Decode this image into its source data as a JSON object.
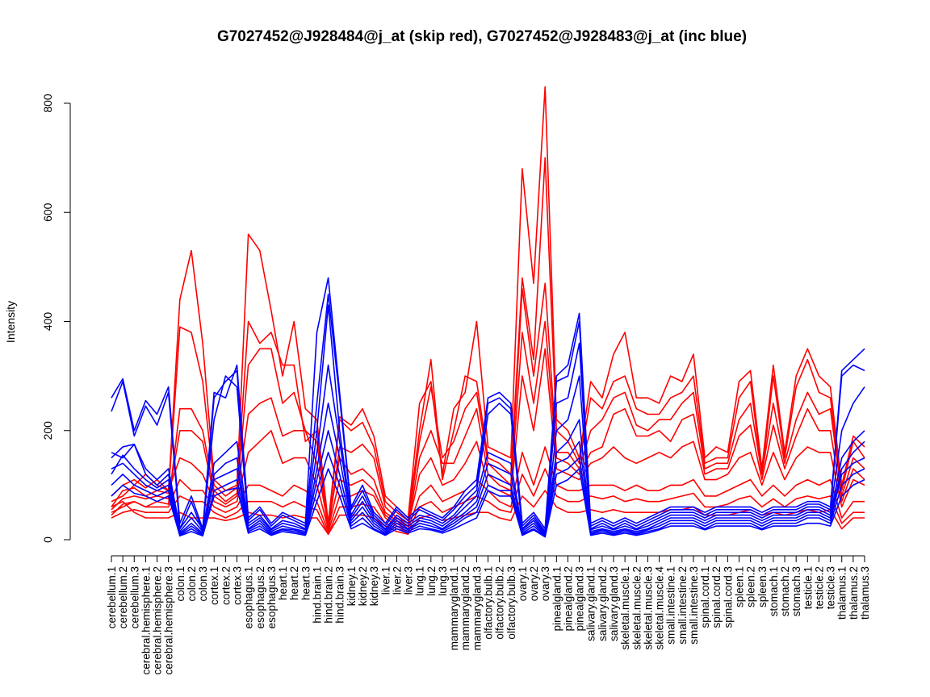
{
  "chart_data": {
    "type": "line",
    "title": "G7027452@J928484@j_at (skip red), G7027452@J928483@j_at (inc blue)",
    "xlabel": "",
    "ylabel": "Intensity",
    "ylim": [
      0,
      830
    ],
    "yticks": [
      0,
      200,
      400,
      600,
      800
    ],
    "colors": {
      "skip": "#ff0000",
      "inc": "#0000ff"
    },
    "categories": [
      "cerebellum.1",
      "cerebellum.2",
      "cerebellum.3",
      "cerebral.hemisphere.1",
      "cerebral.hemisphere.2",
      "cerebral.hemisphere.3",
      "colon.1",
      "colon.2",
      "colon.3",
      "cortex.1",
      "cortex.2",
      "cortex.3",
      "esophagus.1",
      "esophagus.2",
      "esophagus.3",
      "heart.1",
      "heart.2",
      "heart.3",
      "hind.brain.1",
      "hind.brain.2",
      "hind.brain.3",
      "kidney.1",
      "kidney.2",
      "kidney.3",
      "liver.1",
      "liver.2",
      "liver.3",
      "lung.1",
      "lung.2",
      "lung.3",
      "mammarygland.1",
      "mammarygland.2",
      "mammarygland.3",
      "olfactory.bulb.1",
      "olfactory.bulb.2",
      "olfactory.bulb.3",
      "ovary.1",
      "ovary.2",
      "ovary.3",
      "pinealgland.1",
      "pinealgland.2",
      "pinealgland.3",
      "salivary.gland.1",
      "salivary.gland.2",
      "salivary.gland.3",
      "skeletal.muscle.1",
      "skeletal.muscle.2",
      "skeletal.muscle.3",
      "skeletal.muscle.4",
      "small.intestine.1",
      "small.intestine.2",
      "small.intestine.3",
      "spinal.cord.1",
      "spinal.cord.2",
      "spinal.cord.3",
      "spleen.1",
      "spleen.2",
      "spleen.3",
      "stomach.1",
      "stomach.2",
      "stomach.3",
      "testicle.1",
      "testicle.2",
      "testicle.3",
      "thalamus.1",
      "thalamus.2",
      "thalamus.3"
    ],
    "series": [
      {
        "group": "skip",
        "values": [
          80,
          100,
          110,
          95,
          110,
          90,
          440,
          530,
          360,
          110,
          90,
          100,
          560,
          530,
          420,
          300,
          400,
          240,
          220,
          30,
          225,
          210,
          240,
          190,
          80,
          60,
          40,
          250,
          290,
          120,
          240,
          270,
          400,
          170,
          160,
          150,
          680,
          470,
          830,
          220,
          200,
          150,
          290,
          260,
          340,
          380,
          260,
          260,
          250,
          300,
          290,
          340,
          150,
          170,
          160,
          290,
          310,
          130,
          320,
          160,
          300,
          350,
          300,
          280,
          100,
          190,
          170
        ]
      },
      {
        "group": "skip",
        "values": [
          60,
          90,
          95,
          80,
          90,
          85,
          390,
          380,
          290,
          100,
          80,
          95,
          400,
          360,
          380,
          320,
          320,
          180,
          200,
          20,
          220,
          200,
          215,
          170,
          70,
          50,
          35,
          200,
          330,
          110,
          200,
          300,
          290,
          150,
          140,
          120,
          480,
          330,
          700,
          200,
          180,
          140,
          260,
          240,
          290,
          300,
          240,
          230,
          230,
          260,
          270,
          300,
          140,
          150,
          150,
          260,
          290,
          120,
          300,
          150,
          280,
          330,
          270,
          260,
          90,
          180,
          150
        ]
      },
      {
        "group": "skip",
        "values": [
          45,
          65,
          70,
          60,
          70,
          65,
          240,
          240,
          200,
          90,
          70,
          85,
          320,
          350,
          350,
          250,
          270,
          200,
          180,
          15,
          170,
          160,
          175,
          150,
          60,
          40,
          30,
          180,
          280,
          150,
          180,
          240,
          270,
          140,
          120,
          100,
          460,
          300,
          470,
          160,
          160,
          130,
          200,
          220,
          260,
          270,
          210,
          200,
          220,
          220,
          250,
          270,
          130,
          140,
          140,
          220,
          250,
          120,
          250,
          140,
          220,
          270,
          230,
          240,
          80,
          150,
          130
        ]
      },
      {
        "group": "skip",
        "values": [
          55,
          75,
          80,
          75,
          80,
          75,
          200,
          200,
          180,
          80,
          65,
          80,
          230,
          250,
          260,
          190,
          200,
          200,
          140,
          25,
          150,
          120,
          130,
          110,
          50,
          35,
          25,
          150,
          200,
          140,
          140,
          190,
          240,
          120,
          100,
          90,
          380,
          250,
          400,
          150,
          140,
          120,
          160,
          170,
          230,
          240,
          190,
          190,
          200,
          180,
          220,
          230,
          120,
          130,
          130,
          190,
          210,
          110,
          210,
          130,
          190,
          240,
          200,
          200,
          70,
          130,
          110
        ]
      },
      {
        "group": "skip",
        "values": [
          70,
          80,
          100,
          120,
          100,
          90,
          150,
          140,
          120,
          70,
          60,
          70,
          160,
          180,
          200,
          140,
          150,
          150,
          100,
          20,
          110,
          100,
          110,
          90,
          45,
          30,
          25,
          120,
          150,
          100,
          110,
          140,
          180,
          100,
          90,
          80,
          300,
          200,
          350,
          130,
          120,
          110,
          140,
          150,
          170,
          150,
          140,
          150,
          160,
          150,
          170,
          180,
          110,
          110,
          120,
          150,
          160,
          100,
          160,
          110,
          150,
          170,
          160,
          160,
          60,
          110,
          100
        ]
      },
      {
        "group": "skip",
        "values": [
          50,
          60,
          70,
          60,
          60,
          60,
          110,
          90,
          90,
          60,
          50,
          60,
          100,
          100,
          90,
          80,
          100,
          90,
          70,
          15,
          80,
          80,
          90,
          80,
          40,
          25,
          20,
          80,
          100,
          70,
          80,
          90,
          110,
          90,
          70,
          60,
          160,
          100,
          170,
          100,
          90,
          90,
          100,
          100,
          100,
          90,
          100,
          90,
          90,
          100,
          100,
          110,
          80,
          80,
          90,
          100,
          110,
          80,
          100,
          80,
          100,
          110,
          100,
          110,
          40,
          70,
          70
        ]
      },
      {
        "group": "skip",
        "values": [
          40,
          50,
          55,
          50,
          50,
          50,
          80,
          70,
          70,
          50,
          40,
          50,
          70,
          70,
          70,
          60,
          70,
          60,
          55,
          10,
          60,
          60,
          65,
          60,
          30,
          20,
          15,
          60,
          70,
          50,
          60,
          70,
          80,
          70,
          55,
          50,
          120,
          80,
          130,
          80,
          70,
          70,
          80,
          75,
          80,
          70,
          75,
          70,
          70,
          75,
          80,
          85,
          60,
          60,
          65,
          75,
          80,
          60,
          75,
          60,
          75,
          80,
          75,
          80,
          30,
          50,
          50
        ]
      },
      {
        "group": "skip",
        "values": [
          60,
          70,
          50,
          40,
          40,
          40,
          50,
          40,
          40,
          40,
          35,
          40,
          50,
          45,
          45,
          40,
          45,
          40,
          40,
          10,
          45,
          45,
          45,
          40,
          25,
          15,
          10,
          40,
          45,
          35,
          40,
          45,
          50,
          50,
          40,
          35,
          80,
          60,
          90,
          60,
          50,
          50,
          55,
          50,
          55,
          50,
          50,
          50,
          50,
          55,
          55,
          60,
          45,
          45,
          45,
          50,
          55,
          45,
          50,
          45,
          50,
          55,
          50,
          55,
          20,
          40,
          40
        ]
      },
      {
        "group": "inc",
        "values": [
          260,
          295,
          200,
          255,
          230,
          280,
          30,
          80,
          20,
          270,
          260,
          320,
          40,
          60,
          30,
          50,
          40,
          30,
          380,
          480,
          270,
          60,
          100,
          50,
          30,
          60,
          40,
          60,
          50,
          40,
          60,
          90,
          110,
          260,
          270,
          250,
          30,
          50,
          20,
          300,
          320,
          415,
          30,
          40,
          30,
          40,
          30,
          40,
          50,
          60,
          60,
          60,
          50,
          60,
          60,
          60,
          60,
          50,
          60,
          60,
          60,
          70,
          70,
          60,
          310,
          330,
          350
        ]
      },
      {
        "group": "inc",
        "values": [
          235,
          290,
          190,
          245,
          210,
          270,
          20,
          70,
          15,
          260,
          290,
          310,
          35,
          55,
          25,
          45,
          35,
          25,
          250,
          450,
          260,
          55,
          90,
          45,
          25,
          55,
          35,
          55,
          45,
          35,
          55,
          80,
          100,
          250,
          260,
          240,
          25,
          45,
          15,
          290,
          300,
          400,
          25,
          35,
          25,
          35,
          25,
          35,
          45,
          55,
          55,
          55,
          45,
          55,
          55,
          55,
          55,
          45,
          55,
          55,
          55,
          65,
          65,
          55,
          300,
          320,
          310
        ]
      },
      {
        "group": "inc",
        "values": [
          150,
          170,
          175,
          130,
          110,
          130,
          20,
          50,
          20,
          220,
          300,
          280,
          30,
          45,
          20,
          35,
          30,
          20,
          200,
          430,
          200,
          45,
          80,
          40,
          20,
          45,
          30,
          45,
          40,
          30,
          45,
          70,
          90,
          230,
          250,
          230,
          20,
          40,
          12,
          250,
          260,
          360,
          20,
          30,
          20,
          30,
          20,
          30,
          40,
          50,
          50,
          50,
          40,
          50,
          50,
          50,
          50,
          40,
          50,
          50,
          50,
          60,
          60,
          50,
          200,
          250,
          280
        ]
      },
      {
        "group": "inc",
        "values": [
          160,
          150,
          175,
          120,
          100,
          120,
          15,
          40,
          15,
          140,
          160,
          180,
          25,
          40,
          18,
          30,
          25,
          18,
          160,
          320,
          180,
          40,
          70,
          35,
          18,
          40,
          25,
          40,
          35,
          25,
          40,
          60,
          80,
          160,
          150,
          140,
          18,
          35,
          10,
          200,
          220,
          300,
          18,
          25,
          18,
          25,
          18,
          25,
          35,
          45,
          45,
          45,
          35,
          45,
          45,
          45,
          45,
          35,
          45,
          45,
          45,
          55,
          55,
          45,
          150,
          180,
          200
        ]
      },
      {
        "group": "inc",
        "values": [
          120,
          155,
          130,
          110,
          95,
          110,
          12,
          30,
          12,
          120,
          140,
          150,
          20,
          35,
          15,
          25,
          20,
          15,
          130,
          250,
          150,
          35,
          60,
          30,
          15,
          35,
          20,
          35,
          30,
          20,
          35,
          50,
          70,
          140,
          130,
          120,
          15,
          30,
          8,
          160,
          180,
          220,
          15,
          20,
          15,
          20,
          15,
          20,
          30,
          40,
          40,
          40,
          30,
          40,
          40,
          40,
          40,
          30,
          40,
          40,
          40,
          50,
          50,
          40,
          130,
          160,
          180
        ]
      },
      {
        "group": "inc",
        "values": [
          130,
          140,
          120,
          100,
          90,
          100,
          10,
          25,
          10,
          110,
          120,
          130,
          18,
          30,
          12,
          20,
          18,
          12,
          110,
          200,
          120,
          30,
          50,
          25,
          12,
          30,
          18,
          30,
          25,
          18,
          30,
          45,
          60,
          120,
          110,
          100,
          12,
          25,
          7,
          140,
          150,
          180,
          12,
          18,
          12,
          18,
          12,
          18,
          25,
          35,
          35,
          35,
          25,
          35,
          35,
          35,
          35,
          25,
          35,
          35,
          35,
          45,
          45,
          35,
          120,
          140,
          150
        ]
      },
      {
        "group": "inc",
        "values": [
          100,
          120,
          100,
          90,
          80,
          90,
          8,
          20,
          8,
          90,
          100,
          110,
          15,
          25,
          10,
          18,
          15,
          10,
          90,
          160,
          100,
          25,
          40,
          20,
          10,
          25,
          15,
          25,
          20,
          15,
          25,
          40,
          50,
          100,
          90,
          90,
          10,
          20,
          6,
          120,
          130,
          150,
          10,
          15,
          10,
          15,
          10,
          15,
          20,
          30,
          30,
          30,
          20,
          30,
          30,
          30,
          30,
          20,
          30,
          30,
          30,
          40,
          40,
          30,
          100,
          120,
          130
        ]
      },
      {
        "group": "inc",
        "values": [
          80,
          100,
          85,
          80,
          70,
          80,
          7,
          15,
          7,
          80,
          90,
          95,
          12,
          20,
          8,
          15,
          12,
          8,
          70,
          130,
          80,
          20,
          30,
          18,
          8,
          20,
          12,
          20,
          18,
          12,
          20,
          30,
          40,
          90,
          80,
          80,
          8,
          18,
          5,
          100,
          110,
          130,
          8,
          12,
          8,
          12,
          8,
          12,
          18,
          25,
          25,
          25,
          18,
          25,
          25,
          25,
          25,
          18,
          25,
          25,
          25,
          30,
          30,
          25,
          80,
          100,
          110
        ]
      }
    ]
  }
}
